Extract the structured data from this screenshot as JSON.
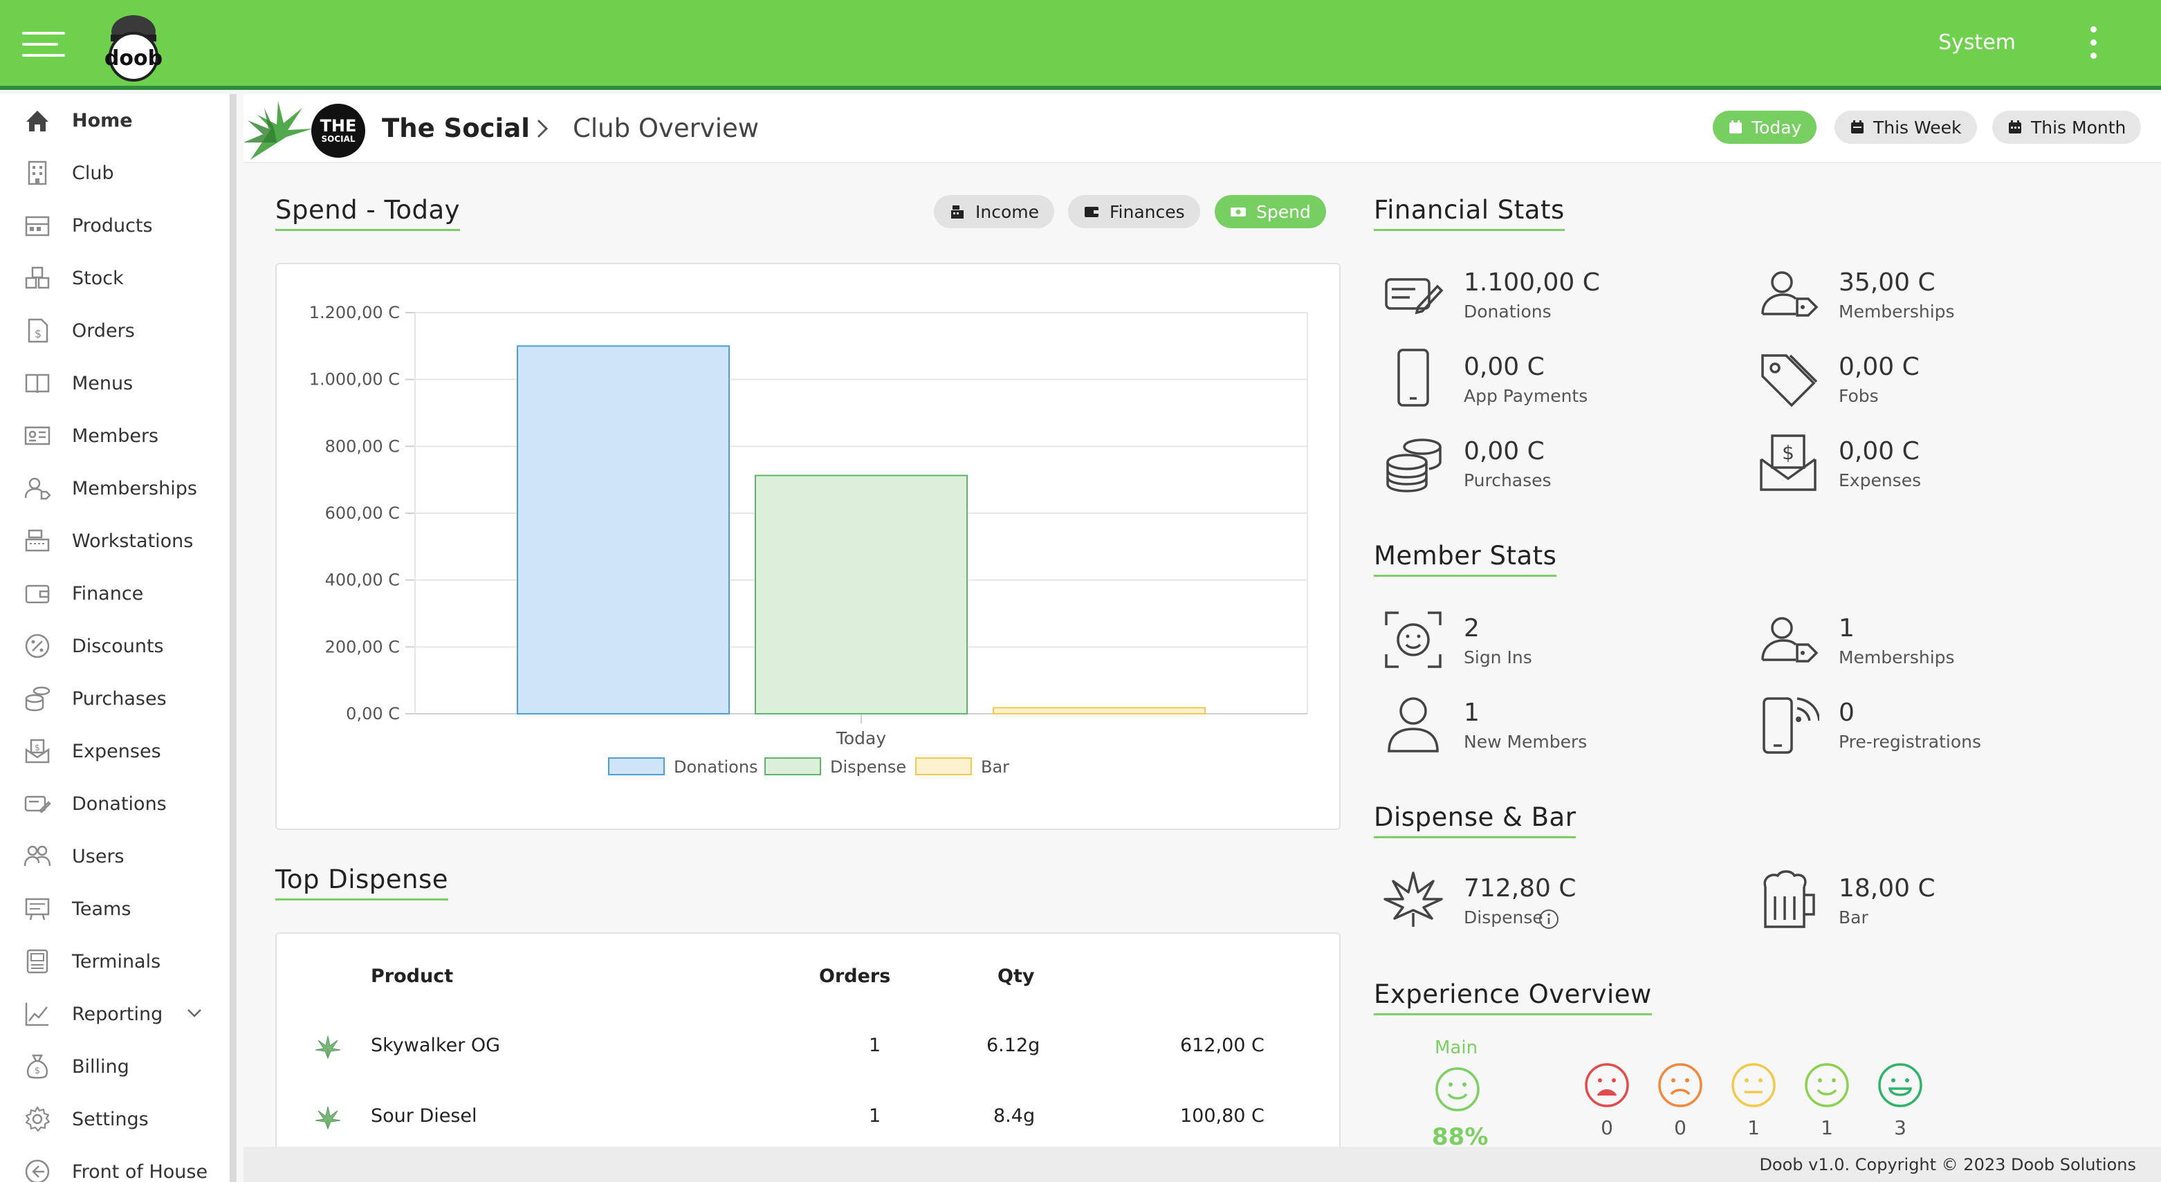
{
  "app": {
    "system_label": "System",
    "logo_text": "doob"
  },
  "sidebar": {
    "items": [
      {
        "label": "Home",
        "icon": "home-icon",
        "active": true
      },
      {
        "label": "Club",
        "icon": "building-icon"
      },
      {
        "label": "Products",
        "icon": "products-icon"
      },
      {
        "label": "Stock",
        "icon": "boxes-icon"
      },
      {
        "label": "Orders",
        "icon": "order-document-icon"
      },
      {
        "label": "Menus",
        "icon": "book-icon"
      },
      {
        "label": "Members",
        "icon": "id-card-icon"
      },
      {
        "label": "Memberships",
        "icon": "person-tag-icon"
      },
      {
        "label": "Workstations",
        "icon": "cash-register-icon"
      },
      {
        "label": "Finance",
        "icon": "wallet-icon"
      },
      {
        "label": "Discounts",
        "icon": "percent-icon"
      },
      {
        "label": "Purchases",
        "icon": "coins-icon"
      },
      {
        "label": "Expenses",
        "icon": "money-envelope-icon"
      },
      {
        "label": "Donations",
        "icon": "donation-card-icon"
      },
      {
        "label": "Users",
        "icon": "users-icon"
      },
      {
        "label": "Teams",
        "icon": "team-board-icon"
      },
      {
        "label": "Terminals",
        "icon": "terminal-icon"
      },
      {
        "label": "Reporting",
        "icon": "line-chart-icon",
        "expandable": true
      },
      {
        "label": "Billing",
        "icon": "money-bag-icon"
      },
      {
        "label": "Settings",
        "icon": "gear-icon"
      },
      {
        "label": "Front of House",
        "icon": "arrow-left-circle-icon"
      }
    ]
  },
  "header": {
    "club_avatar_line1": "THE",
    "club_avatar_line2": "SOCIAL",
    "club_name": "The Social",
    "page": "Club Overview",
    "ranges": [
      {
        "label": "Today",
        "active": true
      },
      {
        "label": "This Week"
      },
      {
        "label": "This Month"
      }
    ]
  },
  "spend": {
    "title": "Spend - Today",
    "tabs": [
      {
        "label": "Income",
        "icon": "cash-register-icon"
      },
      {
        "label": "Finances",
        "icon": "wallet-icon"
      },
      {
        "label": "Spend",
        "icon": "money-icon",
        "active": true
      }
    ]
  },
  "chart_data": {
    "type": "bar",
    "categories": [
      "Today"
    ],
    "series": [
      {
        "name": "Donations",
        "values": [
          1100
        ],
        "fill": "#cfe4f8",
        "stroke": "#4a9fd6"
      },
      {
        "name": "Dispense",
        "values": [
          712.8
        ],
        "fill": "#dcefd9",
        "stroke": "#5fb36c"
      },
      {
        "name": "Bar",
        "values": [
          18
        ],
        "fill": "#fdf1cf",
        "stroke": "#f2c94c"
      }
    ],
    "yticks": [
      "0,00 C",
      "200,00 C",
      "400,00 C",
      "600,00 C",
      "800,00 C",
      "1.000,00 C",
      "1.200,00 C"
    ],
    "ylim": [
      0,
      1200
    ],
    "grid": true,
    "legend": "bottom"
  },
  "top_dispense": {
    "title": "Top Dispense",
    "headers": {
      "product": "Product",
      "orders": "Orders",
      "qty": "Qty"
    },
    "rows": [
      {
        "product": "Skywalker OG",
        "orders": "1",
        "qty": "6.12g",
        "total": "612,00 C"
      },
      {
        "product": "Sour Diesel",
        "orders": "1",
        "qty": "8.4g",
        "total": "100,80 C"
      }
    ]
  },
  "financial_stats": {
    "title": "Financial Stats",
    "items": [
      {
        "value": "1.100,00 C",
        "label": "Donations",
        "icon": "donation-card-icon"
      },
      {
        "value": "35,00 C",
        "label": "Memberships",
        "icon": "person-tag-icon"
      },
      {
        "value": "0,00 C",
        "label": "App Payments",
        "icon": "smartphone-icon"
      },
      {
        "value": "0,00 C",
        "label": "Fobs",
        "icon": "tags-icon"
      },
      {
        "value": "0,00 C",
        "label": "Purchases",
        "icon": "coins-icon"
      },
      {
        "value": "0,00 C",
        "label": "Expenses",
        "icon": "money-envelope-icon"
      }
    ]
  },
  "member_stats": {
    "title": "Member Stats",
    "items": [
      {
        "value": "2",
        "label": "Sign Ins",
        "icon": "face-scan-icon"
      },
      {
        "value": "1",
        "label": "Memberships",
        "icon": "person-tag-icon"
      },
      {
        "value": "1",
        "label": "New Members",
        "icon": "person-icon"
      },
      {
        "value": "0",
        "label": "Pre-registrations",
        "icon": "phone-signal-icon"
      }
    ]
  },
  "dispense_bar": {
    "title": "Dispense & Bar",
    "items": [
      {
        "value": "712,80 C",
        "label": "Dispense",
        "icon": "cannabis-leaf-icon",
        "info": true
      },
      {
        "value": "18,00 C",
        "label": "Bar",
        "icon": "beer-mug-icon"
      }
    ]
  },
  "experience": {
    "title": "Experience Overview",
    "main_label": "Main",
    "main_percent": "88%",
    "ratings": [
      {
        "count": "0",
        "color": "#e14b4b",
        "mood": "very-sad"
      },
      {
        "count": "0",
        "color": "#f0883e",
        "mood": "sad"
      },
      {
        "count": "1",
        "color": "#f2c94c",
        "mood": "neutral"
      },
      {
        "count": "1",
        "color": "#8bd04e",
        "mood": "happy"
      },
      {
        "count": "3",
        "color": "#2fb36a",
        "mood": "very-happy"
      }
    ]
  },
  "footer": {
    "text": "Doob v1.0. Copyright © 2023 Doob Solutions"
  }
}
